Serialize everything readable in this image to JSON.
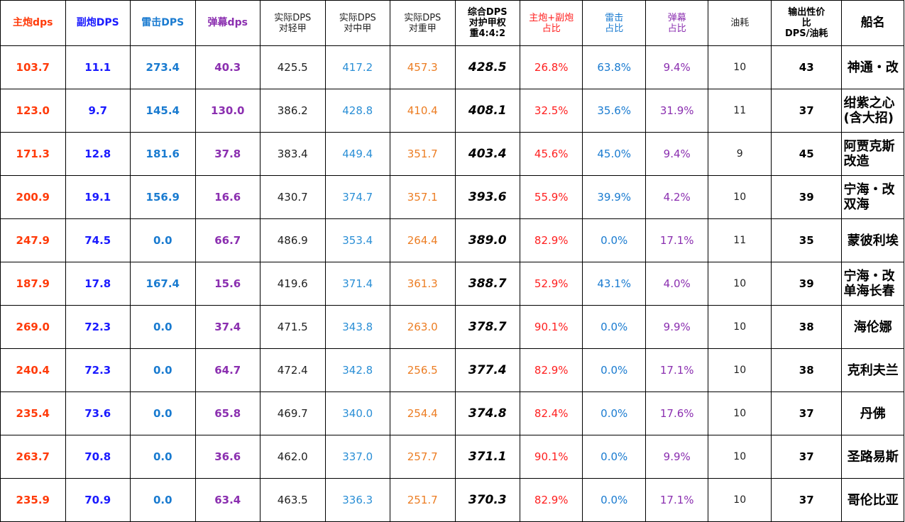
{
  "headers": [
    {
      "text": "主炮dps",
      "color": "#ff3b0a"
    },
    {
      "text": "副炮DPS",
      "color": "#1a1aff"
    },
    {
      "text": "雷击DPS",
      "color": "#1a7bd0"
    },
    {
      "text": "弹幕dps",
      "color": "#8b2fb0"
    },
    {
      "text": "实际DPS\n对轻甲",
      "color": "#222222"
    },
    {
      "text": "实际DPS\n对中甲",
      "color": "#222222"
    },
    {
      "text": "实际DPS\n对重甲",
      "color": "#222222"
    },
    {
      "text": "综合DPS\n对护甲权\n重4:4:2",
      "color": "#000000"
    },
    {
      "text": "主炮+副炮\n占比",
      "color": "#ff2020"
    },
    {
      "text": "雷击\n占比",
      "color": "#1a7bd0"
    },
    {
      "text": "弹幕\n占比",
      "color": "#8b2fb0"
    },
    {
      "text": "油耗",
      "color": "#222222"
    },
    {
      "text": "输出性价\n比\nDPS/油耗",
      "color": "#000000"
    },
    {
      "text": "船名",
      "color": "#000000"
    }
  ],
  "rows": [
    {
      "main": "103.7",
      "sec": "11.1",
      "torp": "273.4",
      "barrage": "40.3",
      "light": "425.5",
      "medium": "417.2",
      "heavy": "457.3",
      "composite": "428.5",
      "gun_pct": "26.8%",
      "torp_pct": "63.8%",
      "barrage_pct": "9.4%",
      "fuel": "10",
      "ratio": "43",
      "name": "神通・改"
    },
    {
      "main": "123.0",
      "sec": "9.7",
      "torp": "145.4",
      "barrage": "130.0",
      "light": "386.2",
      "medium": "428.8",
      "heavy": "410.4",
      "composite": "408.1",
      "gun_pct": "32.5%",
      "torp_pct": "35.6%",
      "barrage_pct": "31.9%",
      "fuel": "11",
      "ratio": "37",
      "name": "绀紫之心\n(含大招)"
    },
    {
      "main": "171.3",
      "sec": "12.8",
      "torp": "181.6",
      "barrage": "37.8",
      "light": "383.4",
      "medium": "449.4",
      "heavy": "351.7",
      "composite": "403.4",
      "gun_pct": "45.6%",
      "torp_pct": "45.0%",
      "barrage_pct": "9.4%",
      "fuel": "9",
      "ratio": "45",
      "name": "阿贾克斯\n改造"
    },
    {
      "main": "200.9",
      "sec": "19.1",
      "torp": "156.9",
      "barrage": "16.6",
      "light": "430.7",
      "medium": "374.7",
      "heavy": "357.1",
      "composite": "393.6",
      "gun_pct": "55.9%",
      "torp_pct": "39.9%",
      "barrage_pct": "4.2%",
      "fuel": "10",
      "ratio": "39",
      "name": "宁海・改\n双海"
    },
    {
      "main": "247.9",
      "sec": "74.5",
      "torp": "0.0",
      "barrage": "66.7",
      "light": "486.9",
      "medium": "353.4",
      "heavy": "264.4",
      "composite": "389.0",
      "gun_pct": "82.9%",
      "torp_pct": "0.0%",
      "barrage_pct": "17.1%",
      "fuel": "11",
      "ratio": "35",
      "name": "蒙彼利埃"
    },
    {
      "main": "187.9",
      "sec": "17.8",
      "torp": "167.4",
      "barrage": "15.6",
      "light": "419.6",
      "medium": "371.4",
      "heavy": "361.3",
      "composite": "388.7",
      "gun_pct": "52.9%",
      "torp_pct": "43.1%",
      "barrage_pct": "4.0%",
      "fuel": "10",
      "ratio": "39",
      "name": "宁海・改\n单海长春"
    },
    {
      "main": "269.0",
      "sec": "72.3",
      "torp": "0.0",
      "barrage": "37.4",
      "light": "471.5",
      "medium": "343.8",
      "heavy": "263.0",
      "composite": "378.7",
      "gun_pct": "90.1%",
      "torp_pct": "0.0%",
      "barrage_pct": "9.9%",
      "fuel": "10",
      "ratio": "38",
      "name": "海伦娜"
    },
    {
      "main": "240.4",
      "sec": "72.3",
      "torp": "0.0",
      "barrage": "64.7",
      "light": "472.4",
      "medium": "342.8",
      "heavy": "256.5",
      "composite": "377.4",
      "gun_pct": "82.9%",
      "torp_pct": "0.0%",
      "barrage_pct": "17.1%",
      "fuel": "10",
      "ratio": "38",
      "name": "克利夫兰"
    },
    {
      "main": "235.4",
      "sec": "73.6",
      "torp": "0.0",
      "barrage": "65.8",
      "light": "469.7",
      "medium": "340.0",
      "heavy": "254.4",
      "composite": "374.8",
      "gun_pct": "82.4%",
      "torp_pct": "0.0%",
      "barrage_pct": "17.6%",
      "fuel": "10",
      "ratio": "37",
      "name": "丹佛"
    },
    {
      "main": "263.7",
      "sec": "70.8",
      "torp": "0.0",
      "barrage": "36.6",
      "light": "462.0",
      "medium": "337.0",
      "heavy": "257.7",
      "composite": "371.1",
      "gun_pct": "90.1%",
      "torp_pct": "0.0%",
      "barrage_pct": "9.9%",
      "fuel": "10",
      "ratio": "37",
      "name": "圣路易斯"
    },
    {
      "main": "235.9",
      "sec": "70.9",
      "torp": "0.0",
      "barrage": "63.4",
      "light": "463.5",
      "medium": "336.3",
      "heavy": "251.7",
      "composite": "370.3",
      "gun_pct": "82.9%",
      "torp_pct": "0.0%",
      "barrage_pct": "17.1%",
      "fuel": "10",
      "ratio": "37",
      "name": "哥伦比亚"
    }
  ]
}
